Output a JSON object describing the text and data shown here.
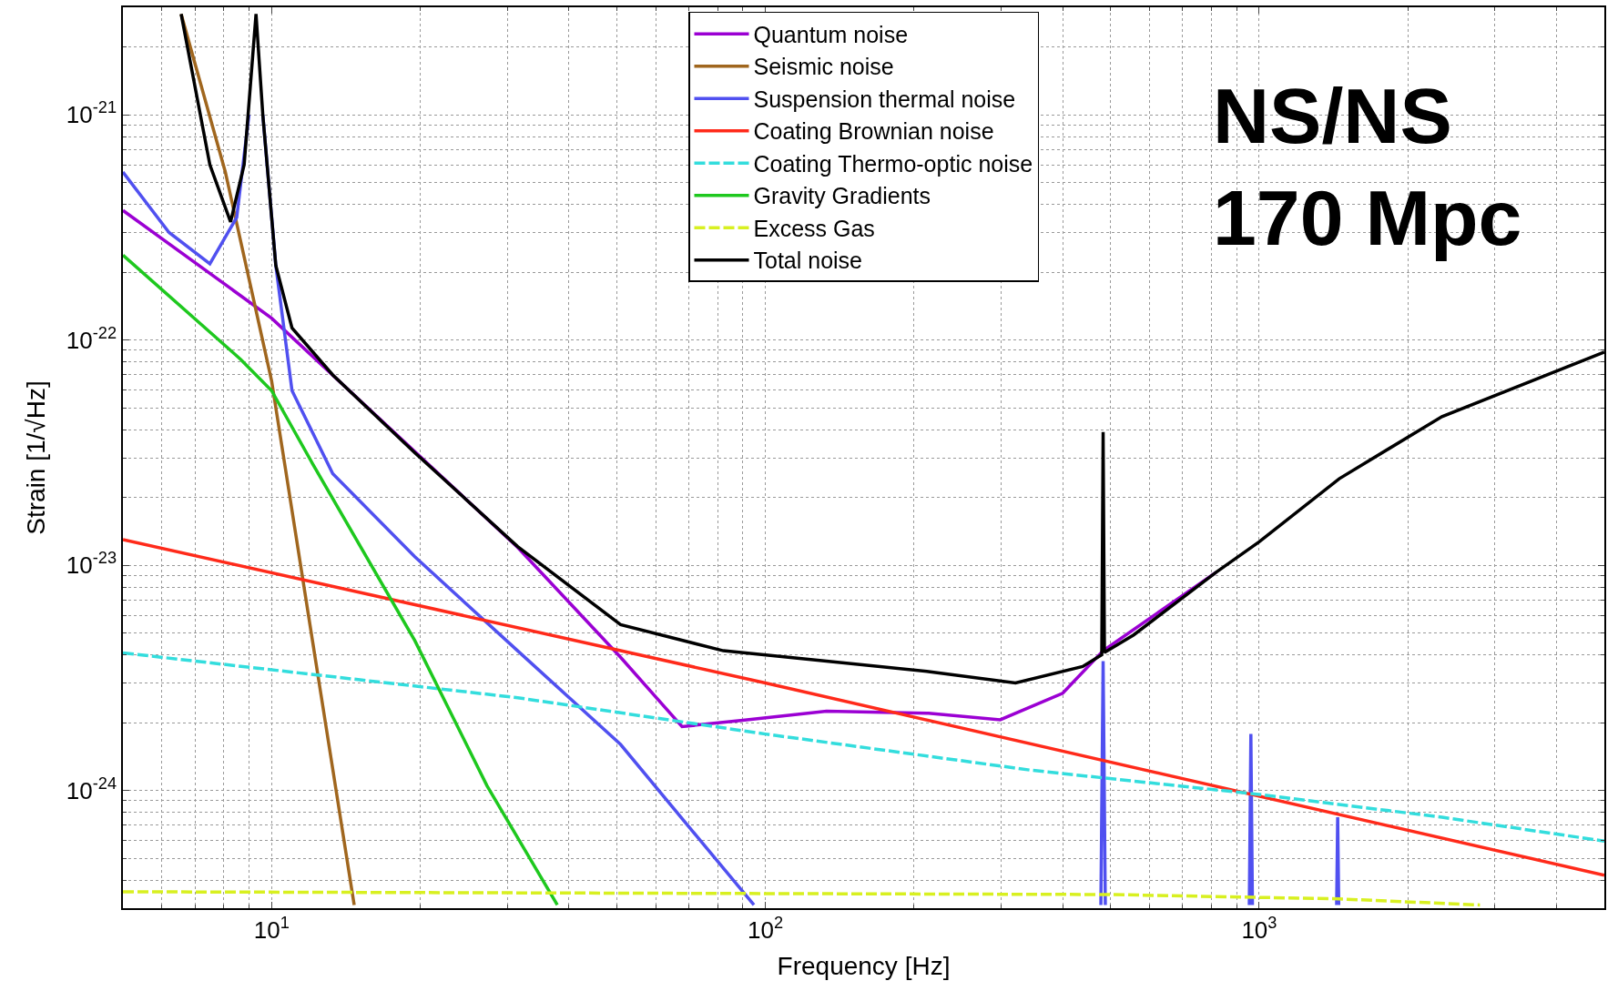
{
  "chart_data": {
    "type": "line",
    "xlabel": "Frequency [Hz]",
    "ylabel": "Strain [1/√Hz]",
    "log": "xy",
    "grid": true,
    "legend": "top",
    "line_style": "solid",
    "xlim": [
      5,
      5000
    ],
    "ylim": [
      3e-25,
      3e-21
    ],
    "xticks": [
      {
        "value": 10,
        "label": "10$^{1}$"
      },
      {
        "value": 100,
        "label": "10$^{2}$"
      },
      {
        "value": 1000,
        "label": "10$^{3}$"
      }
    ],
    "yticks": [
      {
        "value": 1e-24,
        "label": "10$^{-24}$"
      },
      {
        "value": 1e-23,
        "label": "10$^{-23}$"
      },
      {
        "value": 1e-22,
        "label": "10$^{-22}$"
      },
      {
        "value": 1e-21,
        "label": "10$^{-21}$"
      }
    ],
    "annotations": [
      "NS/NS\n170 Mpc"
    ],
    "series": [
      {
        "name": "Quantum noise",
        "color": "#9b00d3",
        "x": [
          5,
          10,
          31.5,
          50.9,
          67.8,
          90,
          133,
          214,
          299,
          400,
          483,
          818
        ],
        "values": [
          3.76e-22,
          1.25e-22,
          1.2e-23,
          3.9e-24,
          1.92e-24,
          2.05e-24,
          2.25e-24,
          2.2e-24,
          2.06e-24,
          2.7e-24,
          4.17e-24,
          9.3e-24
        ]
      },
      {
        "name": "Seismic noise",
        "color": "#a0661e",
        "x": [
          6.56,
          8.06,
          10,
          12.1,
          14.7
        ],
        "values": [
          2.8e-21,
          5.57e-22,
          6.6e-23,
          4.63e-24,
          3.1e-25
        ]
      },
      {
        "name": "Suspension thermal noise",
        "color": "#5050f0",
        "x": [
          5,
          6.2,
          7.5,
          8.5,
          9.0,
          9.3,
          9.6,
          10.2,
          11,
          13.3,
          19.5,
          31.5,
          50.9,
          94.8,
          200,
          478,
          483,
          488,
          600,
          955,
          962,
          969,
          1200,
          1435,
          1442,
          1449
        ],
        "values": [
          5.57e-22,
          3e-22,
          2.18e-22,
          3.5e-22,
          1e-21,
          null,
          1e-21,
          2.14e-22,
          5.96e-23,
          2.55e-23,
          1.09e-23,
          4.17e-24,
          1.6e-24,
          3.1e-25,
          null,
          3.1e-25,
          3.75e-24,
          3.1e-25,
          null,
          3.1e-25,
          1.78e-24,
          3.1e-25,
          null,
          3.1e-25,
          7.6e-25,
          3.1e-25
        ]
      },
      {
        "name": "Coating Brownian noise",
        "color": "#ff2a1a",
        "x": [
          5,
          100,
          5000
        ],
        "values": [
          1.3e-23,
          3e-24,
          4.2e-25
        ]
      },
      {
        "name": "Coating Thermo-optic noise",
        "color": "#33dddd",
        "line_style": "dashed",
        "x": [
          5,
          31.5,
          100,
          345,
          1000,
          2345,
          5000
        ],
        "values": [
          4.08e-24,
          2.58e-24,
          1.78e-24,
          1.23e-24,
          9.6e-25,
          7.6e-25,
          5.96e-25
        ]
      },
      {
        "name": "Gravity Gradients",
        "color": "#1ec81e",
        "x": [
          5,
          8.66,
          10,
          12.1,
          19.5,
          27.3,
          37.9
        ],
        "values": [
          2.38e-22,
          8.2e-23,
          5.96e-23,
          2.83e-23,
          4.63e-24,
          1.05e-24,
          3.1e-25
        ]
      },
      {
        "name": "Excess Gas",
        "color": "#d8f020",
        "line_style": "dashed",
        "x": [
          5,
          500,
          1000,
          1450,
          2800
        ],
        "values": [
          3.55e-25,
          3.45e-25,
          3.35e-25,
          3.3e-25,
          3.1e-25
        ]
      },
      {
        "name": "Total noise",
        "color": "#000000",
        "x": [
          6.56,
          7.5,
          8.26,
          8.8,
          9.3,
          9.6,
          10.2,
          11,
          13.3,
          19.5,
          31.5,
          50.9,
          82.2,
          133,
          214,
          321,
          439,
          480,
          483,
          486,
          557,
          818,
          1000,
          1452,
          2345,
          5000
        ],
        "values": [
          2.8e-21,
          6e-22,
          3.34e-22,
          6e-22,
          2.8e-21,
          1e-21,
          2.14e-22,
          1.13e-22,
          7e-23,
          3.16e-23,
          1.21e-23,
          5.45e-24,
          4.17e-24,
          3.75e-24,
          3.37e-24,
          3e-24,
          3.55e-24,
          4e-24,
          3.9e-23,
          4.1e-24,
          4.9e-24,
          9.3e-24,
          1.27e-23,
          2.42e-23,
          4.57e-23,
          8.83e-23
        ]
      }
    ]
  }
}
